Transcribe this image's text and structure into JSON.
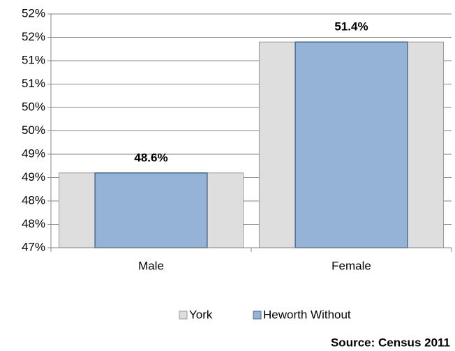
{
  "chart_data": {
    "type": "bar",
    "categories": [
      "Male",
      "Female"
    ],
    "series": [
      {
        "name": "York",
        "color": "#dedede",
        "values": [
          48.6,
          51.4
        ]
      },
      {
        "name": "Heworth Without",
        "color": "#95b3d7",
        "values": [
          48.6,
          51.4
        ],
        "value_labels": [
          "48.6%",
          "51.4%"
        ]
      }
    ],
    "ylim": [
      47,
      52
    ],
    "yticks": [
      {
        "value": 47,
        "label": "47%"
      },
      {
        "value": 47.5,
        "label": "48%"
      },
      {
        "value": 48,
        "label": "48%"
      },
      {
        "value": 48.5,
        "label": "49%"
      },
      {
        "value": 49,
        "label": "49%"
      },
      {
        "value": 49.5,
        "label": "50%"
      },
      {
        "value": 50,
        "label": "50%"
      },
      {
        "value": 50.5,
        "label": "51%"
      },
      {
        "value": 51,
        "label": "51%"
      },
      {
        "value": 51.5,
        "label": "52%"
      },
      {
        "value": 52,
        "label": "52%"
      }
    ],
    "grid": true,
    "legend": "bottom",
    "source": "Source: Census 2011"
  }
}
